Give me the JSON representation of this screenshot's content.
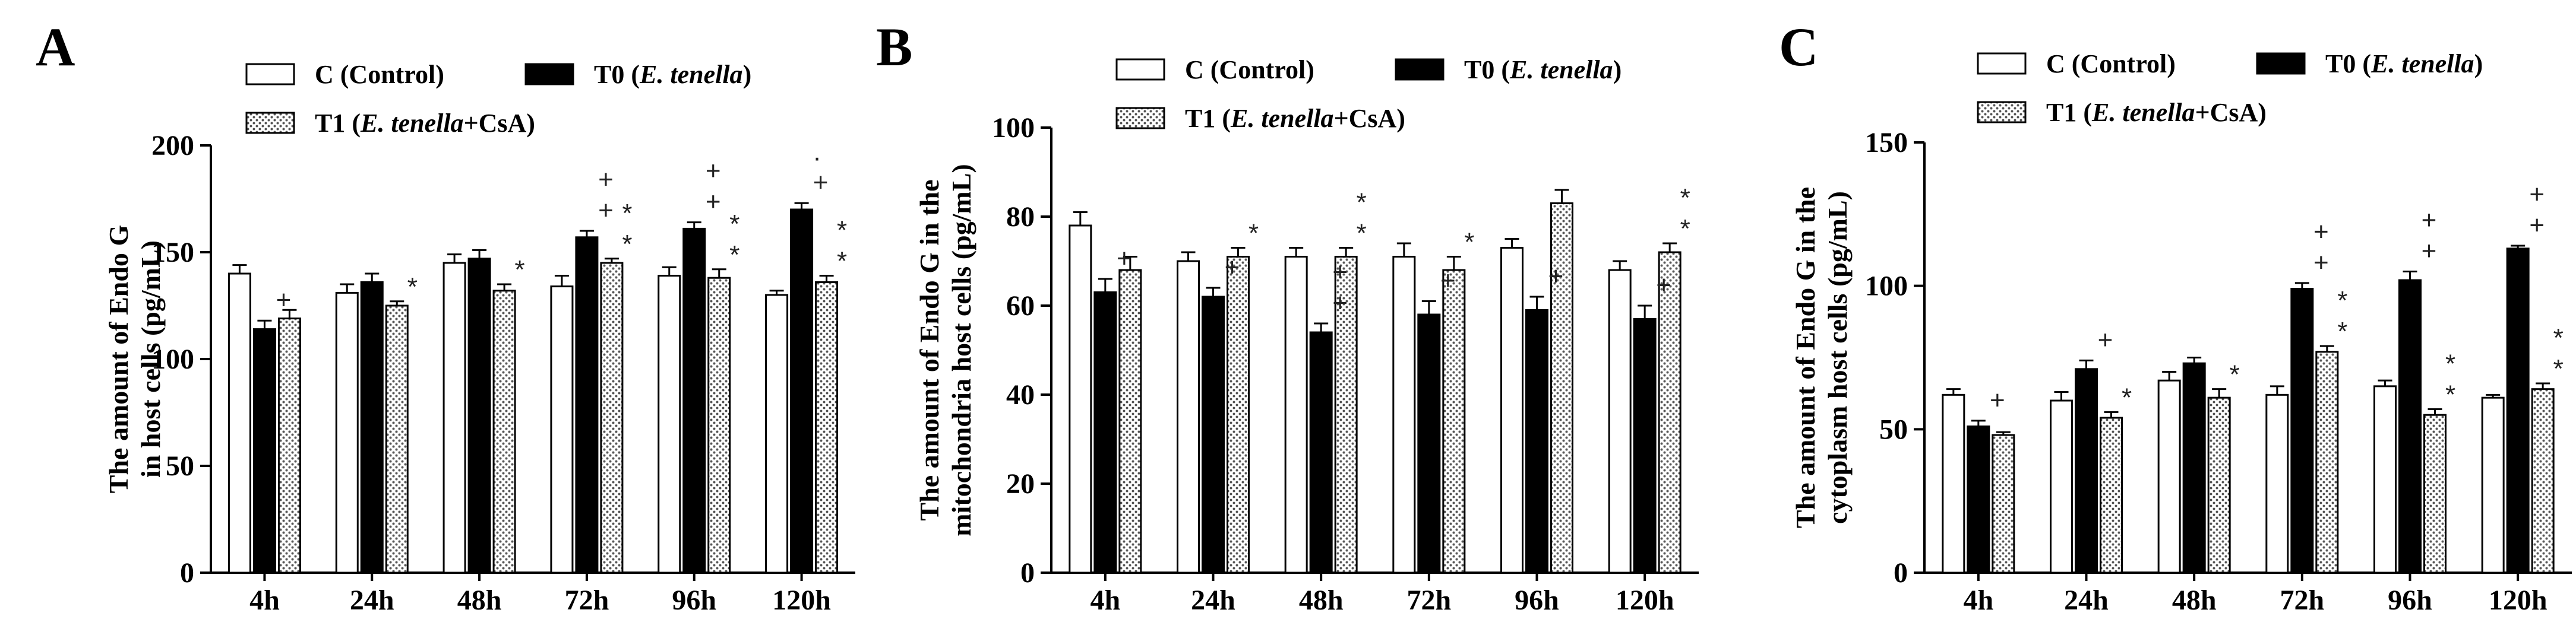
{
  "legend": {
    "control": "C (Control)",
    "t0_prefix": "T0 (",
    "t0_italic": "E. tenella",
    "t0_suffix": ")",
    "t1_prefix": "T1 (",
    "t1_italic": "E. tenella",
    "t1_suffix": "+CsA)"
  },
  "colors": {
    "control": "#ffffff",
    "t0": "#000000",
    "t1_dots": "#555555",
    "axis": "#000000"
  },
  "chart_data": [
    {
      "type": "bar",
      "panel": "A",
      "ylabel_lines": [
        "The amount of Endo G",
        "in host cells (pg/mL)"
      ],
      "ylim": [
        0,
        200
      ],
      "yticks": [
        0,
        50,
        100,
        150,
        200
      ],
      "categories": [
        "4h",
        "24h",
        "48h",
        "72h",
        "96h",
        "120h"
      ],
      "series": [
        {
          "name": "C (Control)",
          "values": [
            140,
            131,
            145,
            134,
            139,
            130
          ],
          "errors": [
            4,
            4,
            4,
            5,
            4,
            2
          ]
        },
        {
          "name": "T0 (E. tenella)",
          "values": [
            114,
            136,
            147,
            157,
            161,
            170
          ],
          "errors": [
            4,
            4,
            4,
            3,
            3,
            3
          ]
        },
        {
          "name": "T1 (E. tenella+CsA)",
          "values": [
            119,
            125,
            132,
            145,
            138,
            136
          ],
          "errors": [
            4,
            2,
            3,
            2,
            4,
            3
          ]
        }
      ],
      "markers": [
        {
          "cat": 0,
          "series": 1,
          "symbols": [
            "+"
          ]
        },
        {
          "cat": 1,
          "series": 2,
          "symbols": [
            "*"
          ]
        },
        {
          "cat": 2,
          "series": 2,
          "symbols": [
            "*"
          ]
        },
        {
          "cat": 3,
          "series": 1,
          "symbols": [
            "+",
            "+"
          ]
        },
        {
          "cat": 3,
          "series": 2,
          "symbols": [
            "*",
            "*"
          ]
        },
        {
          "cat": 4,
          "series": 1,
          "symbols": [
            "+",
            "+"
          ]
        },
        {
          "cat": 4,
          "series": 2,
          "symbols": [
            "*",
            "*"
          ]
        },
        {
          "cat": 5,
          "series": 1,
          "symbols": [
            "+",
            "·"
          ]
        },
        {
          "cat": 5,
          "series": 2,
          "symbols": [
            "*",
            "*"
          ]
        }
      ]
    },
    {
      "type": "bar",
      "panel": "B",
      "ylabel_lines": [
        "The amount of Endo G in  the",
        "mitochondria host cells (pg/mL)"
      ],
      "ylim": [
        0,
        100
      ],
      "yticks": [
        0,
        20,
        40,
        60,
        80,
        100
      ],
      "categories": [
        "4h",
        "24h",
        "48h",
        "72h",
        "96h",
        "120h"
      ],
      "series": [
        {
          "name": "C (Control)",
          "values": [
            78,
            70,
            71,
            71,
            73,
            68
          ],
          "errors": [
            3,
            2,
            2,
            3,
            2,
            2
          ]
        },
        {
          "name": "T0 (E. tenella)",
          "values": [
            63,
            62,
            54,
            58,
            59,
            57
          ],
          "errors": [
            3,
            2,
            2,
            3,
            3,
            3
          ]
        },
        {
          "name": "T1 (E. tenella+CsA)",
          "values": [
            68,
            71,
            71,
            68,
            83,
            72
          ],
          "errors": [
            3,
            2,
            2,
            3,
            3,
            2
          ]
        }
      ],
      "markers": [
        {
          "cat": 0,
          "series": 1,
          "symbols": [
            "+"
          ]
        },
        {
          "cat": 1,
          "series": 1,
          "symbols": [
            "+"
          ]
        },
        {
          "cat": 1,
          "series": 2,
          "symbols": [
            "*"
          ]
        },
        {
          "cat": 2,
          "series": 1,
          "symbols": [
            "+",
            "+"
          ]
        },
        {
          "cat": 2,
          "series": 2,
          "symbols": [
            "*",
            "*"
          ]
        },
        {
          "cat": 3,
          "series": 1,
          "symbols": [
            "+"
          ]
        },
        {
          "cat": 3,
          "series": 2,
          "symbols": [
            "*"
          ]
        },
        {
          "cat": 4,
          "series": 1,
          "symbols": [
            "+"
          ]
        },
        {
          "cat": 5,
          "series": 1,
          "symbols": [
            "+"
          ]
        },
        {
          "cat": 5,
          "series": 2,
          "symbols": [
            "*",
            "*"
          ]
        }
      ]
    },
    {
      "type": "bar",
      "panel": "C",
      "ylabel_lines": [
        "The amount of Endo G in the",
        "cytoplasm host cells (pg/mL)"
      ],
      "ylim": [
        0,
        150
      ],
      "yticks": [
        0,
        50,
        100,
        150
      ],
      "categories": [
        "4h",
        "24h",
        "48h",
        "72h",
        "96h",
        "120h"
      ],
      "series": [
        {
          "name": "C (Control)",
          "values": [
            62,
            60,
            67,
            62,
            65,
            61
          ],
          "errors": [
            2,
            3,
            3,
            3,
            2,
            1
          ]
        },
        {
          "name": "T0 (E. tenella)",
          "values": [
            51,
            71,
            73,
            99,
            102,
            113
          ],
          "errors": [
            2,
            3,
            2,
            2,
            3,
            1
          ]
        },
        {
          "name": "T1 (E. tenella+CsA)",
          "values": [
            48,
            54,
            61,
            77,
            55,
            64
          ],
          "errors": [
            1,
            2,
            3,
            2,
            2,
            2
          ]
        }
      ],
      "markers": [
        {
          "cat": 0,
          "series": 1,
          "symbols": [
            "+"
          ]
        },
        {
          "cat": 1,
          "series": 1,
          "symbols": [
            "+"
          ]
        },
        {
          "cat": 1,
          "series": 2,
          "symbols": [
            "*"
          ]
        },
        {
          "cat": 2,
          "series": 2,
          "symbols": [
            "*"
          ]
        },
        {
          "cat": 3,
          "series": 1,
          "symbols": [
            "+",
            "+"
          ]
        },
        {
          "cat": 3,
          "series": 2,
          "symbols": [
            "*",
            "*"
          ]
        },
        {
          "cat": 4,
          "series": 1,
          "symbols": [
            "+",
            "+"
          ]
        },
        {
          "cat": 4,
          "series": 2,
          "symbols": [
            "*",
            "*"
          ]
        },
        {
          "cat": 5,
          "series": 1,
          "symbols": [
            "+",
            "+"
          ]
        },
        {
          "cat": 5,
          "series": 2,
          "symbols": [
            "*",
            "*"
          ]
        }
      ]
    }
  ]
}
